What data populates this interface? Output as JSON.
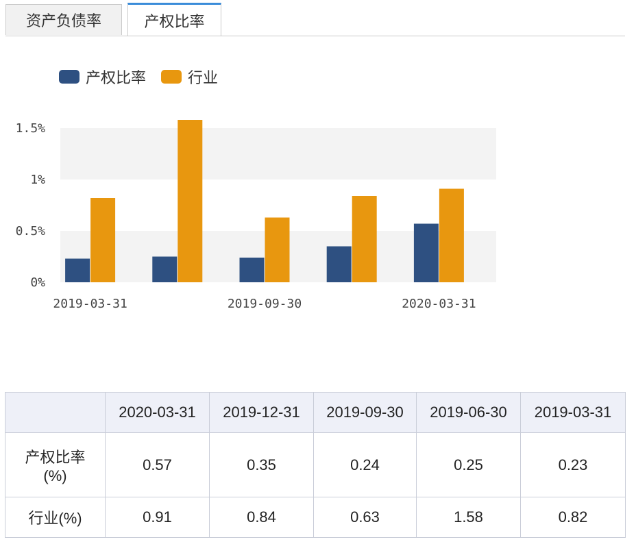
{
  "tabs": [
    {
      "label": "资产负债率",
      "active": false
    },
    {
      "label": "产权比率",
      "active": true
    }
  ],
  "legend": [
    {
      "label": "产权比率",
      "color": "#2e5081"
    },
    {
      "label": "行业",
      "color": "#e8970f"
    }
  ],
  "chart_data": {
    "type": "bar",
    "categories": [
      "2019-03-31",
      "2019-06-30",
      "2019-09-30",
      "2019-12-31",
      "2020-03-31"
    ],
    "x_tick_labels": [
      "2019-03-31",
      "",
      "2019-09-30",
      "",
      "2020-03-31"
    ],
    "series": [
      {
        "name": "产权比率",
        "values": [
          0.23,
          0.25,
          0.24,
          0.35,
          0.57
        ],
        "color": "#2e5081"
      },
      {
        "name": "行业",
        "values": [
          0.82,
          1.58,
          0.63,
          0.84,
          0.91
        ],
        "color": "#e8970f"
      }
    ],
    "yticks": [
      {
        "value": 0,
        "label": "0%"
      },
      {
        "value": 0.5,
        "label": "0.5%"
      },
      {
        "value": 1,
        "label": "1%"
      },
      {
        "value": 1.5,
        "label": "1.5%"
      }
    ],
    "ylim": [
      0,
      1.5
    ],
    "grid": "alternating bands"
  },
  "table": {
    "corner": "",
    "headers": [
      "2020-03-31",
      "2019-12-31",
      "2019-09-30",
      "2019-06-30",
      "2019-03-31"
    ],
    "rows": [
      {
        "label_line1": "产权比率",
        "label_line2": "(%)",
        "values": [
          "0.57",
          "0.35",
          "0.24",
          "0.25",
          "0.23"
        ]
      },
      {
        "label_line1": "行业(%)",
        "label_line2": "",
        "values": [
          "0.91",
          "0.84",
          "0.63",
          "1.58",
          "0.82"
        ]
      }
    ]
  }
}
